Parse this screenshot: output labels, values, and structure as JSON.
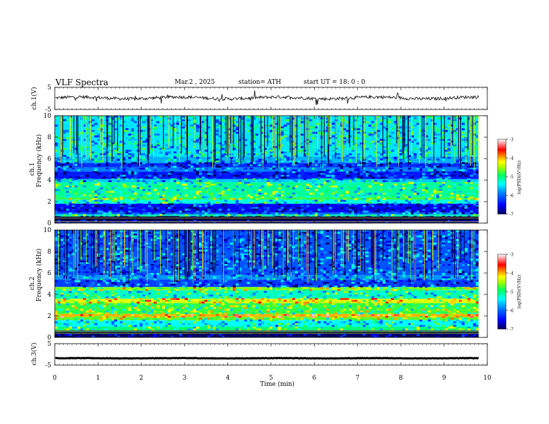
{
  "header": {
    "title": "VLF  Spectra",
    "date": "Mar.2  , 2025",
    "station": "station= ATH",
    "start": "start  UT  =  18: 0  : 0"
  },
  "chart_data": [
    {
      "type": "line",
      "id": "ch1-waveform",
      "ylabel": "ch.1(V)",
      "ylim": [
        -5,
        5
      ],
      "yticks": [
        "5",
        "-5"
      ],
      "description_series": "time-domain waveform, baseline near 0 V",
      "baseline_v": 0.2,
      "color": "#000000"
    },
    {
      "type": "heatmap",
      "id": "ch1-spectrogram",
      "ylabel": "ch.1\nFrequency  (kHz)",
      "ylabel_lines": [
        "ch.1",
        "Frequency  (kHz)"
      ],
      "ylim": [
        0,
        10
      ],
      "yticks": [
        "0",
        "2",
        "4",
        "6",
        "8",
        "10"
      ],
      "colorbar": {
        "label": "log(PSD)(V²/Hz)",
        "range": [
          -7,
          -3
        ],
        "ticks": [
          "-3",
          "-4",
          "-5",
          "-6",
          "-7"
        ]
      },
      "bands_khz_to_level": [
        [
          0.0,
          0.6,
          -7.0
        ],
        [
          0.6,
          0.8,
          -5.2
        ],
        [
          0.8,
          1.0,
          -6.0
        ],
        [
          1.0,
          1.8,
          -6.5
        ],
        [
          1.8,
          2.2,
          -5.3
        ],
        [
          2.2,
          2.4,
          -4.8
        ],
        [
          2.4,
          3.8,
          -5.1
        ],
        [
          3.8,
          4.1,
          -5.6
        ],
        [
          4.1,
          4.8,
          -6.4
        ],
        [
          4.8,
          5.2,
          -5.9
        ],
        [
          5.2,
          5.6,
          -6.3
        ],
        [
          5.6,
          6.2,
          -5.7
        ],
        [
          6.2,
          10.0,
          -5.5
        ]
      ]
    },
    {
      "type": "heatmap",
      "id": "ch2-spectrogram",
      "ylabel": "ch.2\nFrequency  (kHz)",
      "ylabel_lines": [
        "ch.2",
        "Frequency  (kHz)"
      ],
      "ylim": [
        0,
        10
      ],
      "yticks": [
        "0",
        "2",
        "4",
        "6",
        "8",
        "10"
      ],
      "colorbar": {
        "label": "log(PSD)(V²/Hz)",
        "range": [
          -7,
          -3
        ],
        "ticks": [
          "-3",
          "-4",
          "-5",
          "-6",
          "-7"
        ]
      },
      "bands_khz_to_level": [
        [
          0.0,
          0.4,
          -7.0
        ],
        [
          0.4,
          1.0,
          -5.0
        ],
        [
          1.0,
          1.6,
          -5.4
        ],
        [
          1.6,
          1.9,
          -4.7
        ],
        [
          1.9,
          2.2,
          -4.0
        ],
        [
          2.2,
          3.2,
          -4.8
        ],
        [
          3.2,
          3.6,
          -4.3
        ],
        [
          3.6,
          4.4,
          -5.2
        ],
        [
          4.4,
          4.7,
          -4.6
        ],
        [
          4.7,
          5.4,
          -6.2
        ],
        [
          5.4,
          5.8,
          -5.8
        ],
        [
          5.8,
          10.0,
          -6.1
        ]
      ]
    },
    {
      "type": "line",
      "id": "ch3-waveform",
      "ylabel": "ch.3(V)",
      "ylim": [
        -5,
        5
      ],
      "yticks": [
        "5",
        "-5"
      ],
      "baseline_v": -1.8,
      "color": "#000000"
    }
  ],
  "x_axis": {
    "label": "Time  (min)",
    "xlim": [
      0,
      10
    ],
    "ticks": [
      "0",
      "1",
      "2",
      "3",
      "4",
      "5",
      "6",
      "7",
      "8",
      "9",
      "10"
    ],
    "data_end_min": 9.8
  },
  "colors": {
    "scale": [
      "#000080",
      "#0000ff",
      "#0080ff",
      "#00ffff",
      "#00ff80",
      "#80ff00",
      "#ffff00",
      "#ff8000",
      "#ff0000",
      "#ff8080",
      "#ffffff"
    ],
    "frame": "#000000",
    "background": "#ffffff"
  }
}
